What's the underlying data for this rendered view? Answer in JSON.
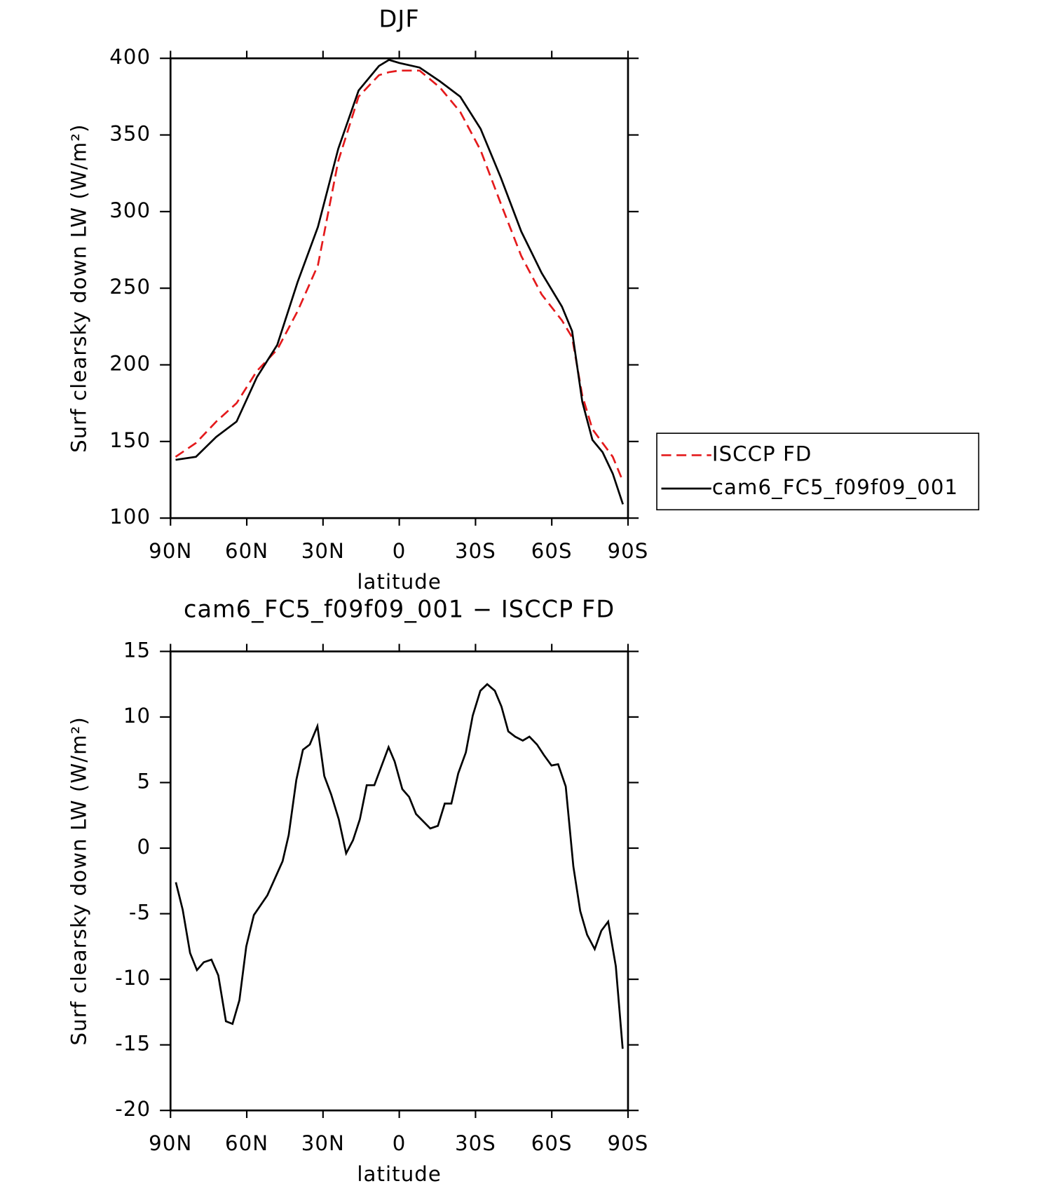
{
  "chart_data": [
    {
      "type": "line",
      "title": "DJF",
      "x_label": "latitude",
      "y_label": "Surf clearsky down LW (W/m²)",
      "xlim": [
        90,
        -90
      ],
      "ylim": [
        100,
        400
      ],
      "xticks": [
        {
          "value": 90,
          "label": "90N"
        },
        {
          "value": 60,
          "label": "60N"
        },
        {
          "value": 30,
          "label": "30N"
        },
        0,
        {
          "value": -30,
          "label": "30S"
        },
        {
          "value": -60,
          "label": "60S"
        },
        {
          "value": -90,
          "label": "90S"
        }
      ],
      "yticks": [
        100,
        150,
        200,
        250,
        300,
        350,
        400
      ],
      "legend": "right",
      "x": [
        88,
        80,
        72,
        64,
        56,
        48,
        40,
        32,
        24,
        16,
        8,
        4,
        0,
        -8,
        -16,
        -24,
        -32,
        -40,
        -48,
        -56,
        -64,
        -68,
        -72,
        -76,
        -80,
        -84,
        -88
      ],
      "series": [
        {
          "name": "ISCCP FD",
          "color": "#e41a1c",
          "dashed": true,
          "values": [
            140,
            149,
            163,
            175,
            196,
            210,
            235,
            265,
            333,
            375,
            389,
            391,
            392,
            392,
            381,
            365,
            340,
            305,
            271,
            246,
            229,
            218,
            180,
            158,
            149,
            140,
            124
          ]
        },
        {
          "name": "cam6_FC5_f09f09_001",
          "color": "#000000",
          "dashed": false,
          "values": [
            138,
            140,
            153,
            163,
            192,
            213,
            254,
            290,
            341,
            379,
            395,
            399,
            397,
            394,
            385,
            375,
            354,
            322,
            287,
            260,
            238,
            222,
            176,
            151,
            143,
            129,
            109
          ]
        }
      ]
    },
    {
      "type": "line",
      "title": "cam6_FC5_f09f09_001 − ISCCP FD",
      "x_label": "latitude",
      "y_label": "Surf clearsky down LW (W/m²)",
      "xlim": [
        90,
        -90
      ],
      "ylim": [
        -20,
        15
      ],
      "xticks": [
        {
          "value": 90,
          "label": "90N"
        },
        {
          "value": 60,
          "label": "60N"
        },
        {
          "value": 30,
          "label": "30N"
        },
        0,
        {
          "value": -30,
          "label": "30S"
        },
        {
          "value": -60,
          "label": "60S"
        },
        {
          "value": -90,
          "label": "90S"
        }
      ],
      "yticks": [
        -20,
        -15,
        -10,
        -5,
        0,
        5,
        10,
        15
      ],
      "x": [
        87.9,
        85.2,
        82.3,
        79.6,
        76.9,
        73.9,
        71.2,
        68.2,
        65.6,
        62.9,
        60.2,
        57.2,
        51.9,
        48.9,
        45.9,
        43.5,
        40.5,
        37.9,
        35.2,
        32.2,
        29.5,
        26.8,
        23.8,
        20.9,
        18.2,
        15.5,
        12.8,
        9.8,
        4.2,
        1.8,
        -1.2,
        -3.9,
        -6.6,
        -12.2,
        -15.2,
        -17.9,
        -20.5,
        -23.2,
        -26.2,
        -28.9,
        -31.9,
        -34.6,
        -37.6,
        -40.2,
        -42.9,
        -45.6,
        -48.6,
        -51.2,
        -54.2,
        -56.9,
        -59.9,
        -62.5,
        -65.5,
        -68.5,
        -71.2,
        -73.9,
        -76.9,
        -79.5,
        -82.2,
        -85.2,
        -87.9
      ],
      "series": [
        {
          "color": "#000000",
          "dashed": false,
          "values": [
            -2.6,
            -4.7,
            -8.0,
            -9.3,
            -8.7,
            -8.5,
            -9.7,
            -13.2,
            -13.4,
            -11.6,
            -7.5,
            -5.1,
            -3.6,
            -2.3,
            -1.0,
            1.0,
            5.2,
            7.5,
            7.9,
            9.3,
            5.5,
            4.1,
            2.2,
            -0.4,
            0.6,
            2.2,
            4.8,
            4.8,
            7.7,
            6.6,
            4.5,
            3.9,
            2.6,
            1.5,
            1.7,
            3.4,
            3.4,
            5.7,
            7.3,
            10.1,
            12.0,
            12.5,
            12.0,
            10.8,
            8.9,
            8.5,
            8.2,
            8.5,
            7.9,
            7.1,
            6.3,
            6.4,
            4.7,
            -1.4,
            -4.8,
            -6.6,
            -7.7,
            -6.3,
            -5.6,
            -9.0,
            -15.3
          ]
        }
      ]
    }
  ]
}
